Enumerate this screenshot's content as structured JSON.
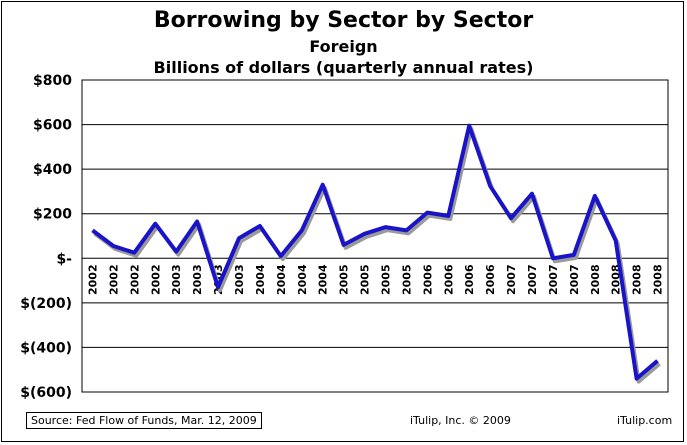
{
  "chart_data": {
    "type": "line",
    "title": "Borrowing by Sector by Sector",
    "subtitle": "Foreign",
    "units": "Billions of dollars (quarterly annual rates)",
    "xlabel": "",
    "ylabel": "",
    "ylim": [
      -600,
      800
    ],
    "y_ticks": [
      800,
      600,
      400,
      200,
      0,
      -200,
      -400,
      -600
    ],
    "y_tick_labels": [
      "$800",
      "$600",
      "$400",
      "$200",
      "$-",
      "$(200)",
      "$(400)",
      "$(600)"
    ],
    "grid": true,
    "categories": [
      "2002",
      "2002",
      "2002",
      "2002",
      "2003",
      "2003",
      "2003",
      "2003",
      "2004",
      "2004",
      "2004",
      "2004",
      "2005",
      "2005",
      "2005",
      "2005",
      "2006",
      "2006",
      "2006",
      "2006",
      "2007",
      "2007",
      "2007",
      "2007",
      "2008",
      "2008",
      "2008",
      "2008"
    ],
    "series": [
      {
        "values": [
          125,
          55,
          25,
          155,
          30,
          165,
          -130,
          90,
          145,
          10,
          125,
          330,
          60,
          110,
          140,
          125,
          205,
          190,
          595,
          325,
          180,
          290,
          0,
          15,
          280,
          80,
          -540,
          -460
        ],
        "color": "#1a14c8"
      }
    ]
  },
  "footer": {
    "source": "Source: Fed Flow of Funds, Mar. 12, 2009",
    "copyright": "iTulip, Inc. © 2009",
    "website": "iTulip.com"
  }
}
